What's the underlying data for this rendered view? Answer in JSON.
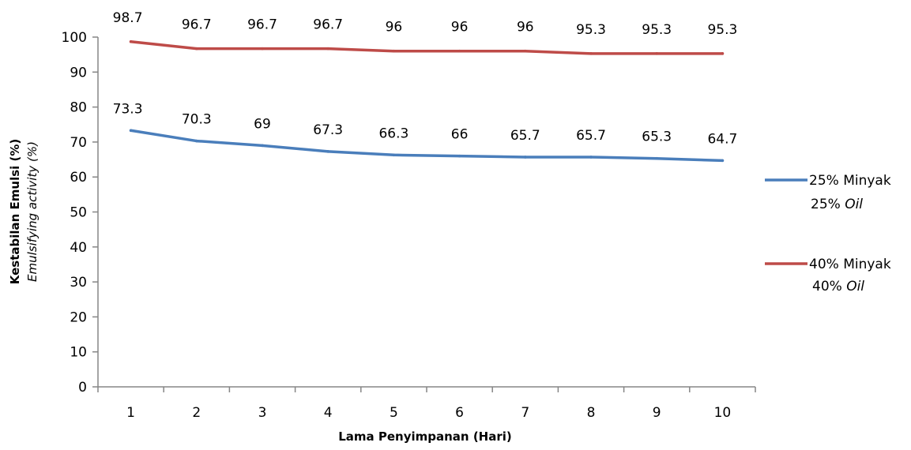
{
  "chart_data": {
    "type": "line",
    "title": "",
    "xlabel": "Lama Penyimpanan (Hari)",
    "ylabel": "Kestabilan Emulsi (%)",
    "ylabel_secondary": "Emulsifying activity (%)",
    "x": [
      1,
      2,
      3,
      4,
      5,
      6,
      7,
      8,
      9,
      10
    ],
    "ylim": [
      0,
      100
    ],
    "yticks": [
      0,
      10,
      20,
      30,
      40,
      50,
      60,
      70,
      80,
      90,
      100
    ],
    "grid": false,
    "legend_position": "right",
    "series": [
      {
        "name": "25% Minyak",
        "name_secondary": "25% Oil",
        "color": "#4a7ebb",
        "values": [
          73.3,
          70.3,
          69,
          67.3,
          66.3,
          66,
          65.7,
          65.7,
          65.3,
          64.7
        ],
        "labels": [
          "73.3",
          "70.3",
          "69",
          "67.3",
          "66.3",
          "66",
          "65.7",
          "65.7",
          "65.3",
          "64.7"
        ]
      },
      {
        "name": "40% Minyak",
        "name_secondary": "40% Oil",
        "color": "#be4b48",
        "values": [
          98.7,
          96.7,
          96.7,
          96.7,
          96,
          96,
          96,
          95.3,
          95.3,
          95.3
        ],
        "labels": [
          "98.7",
          "96.7",
          "96.7",
          "96.7",
          "96",
          "96",
          "96",
          "95.3",
          "95.3",
          "95.3"
        ]
      }
    ]
  }
}
